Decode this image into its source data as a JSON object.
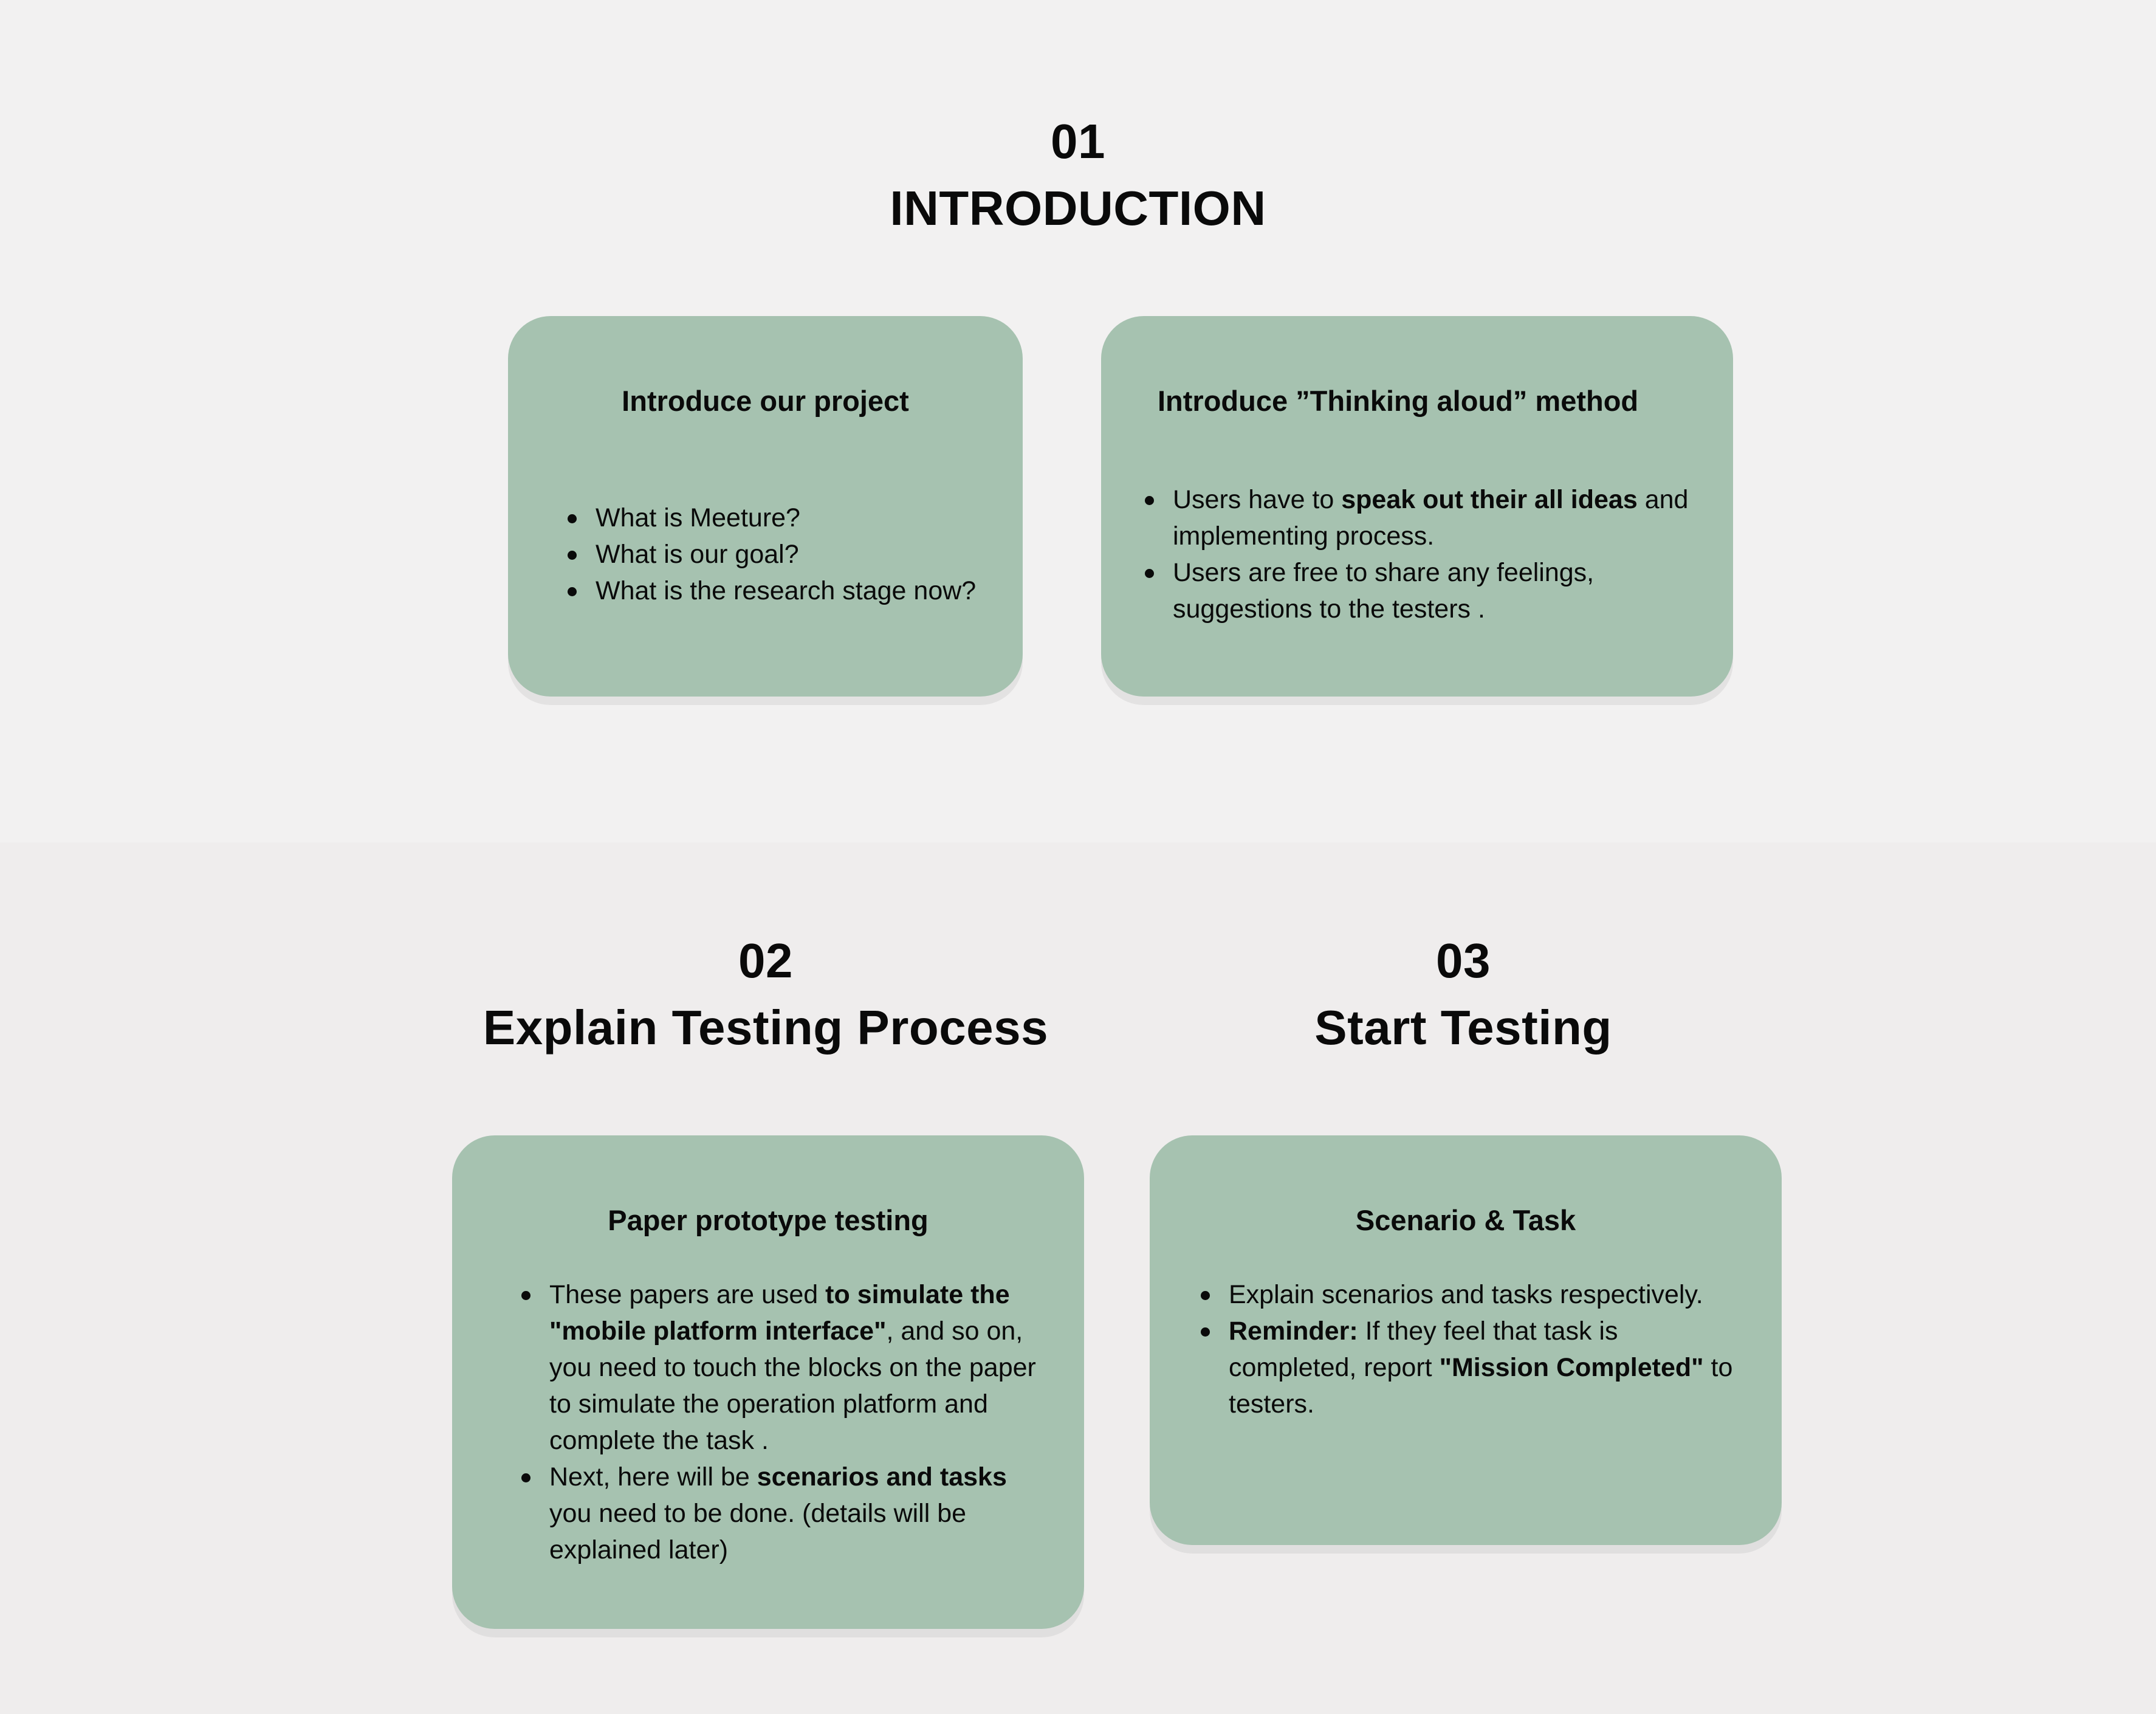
{
  "sections": {
    "intro": {
      "number": "01",
      "title": "INTRODUCTION"
    },
    "explain": {
      "number": "02",
      "title": "Explain Testing Process"
    },
    "start": {
      "number": "03",
      "title": "Start Testing"
    }
  },
  "cards": {
    "project": {
      "title": "Introduce our project",
      "items": [
        "What is Meeture?",
        "What is our goal?",
        "What is the research stage now?"
      ]
    },
    "thinking": {
      "title": "Introduce ”Thinking aloud” method",
      "item1": {
        "a": "Users have to ",
        "b": "speak out their all ideas",
        "c": " and implementing process."
      },
      "item2": "Users are free to share any feelings, suggestions to the testers ."
    },
    "paper": {
      "title": "Paper prototype testing",
      "item1": {
        "a": "These papers are used ",
        "b": "to simulate the \"mobile platform interface\"",
        "c": ", and so on, you need to touch the blocks on the paper to simulate the operation platform and complete the task ."
      },
      "item2": {
        "a": "Next, here will be ",
        "b": "scenarios and tasks",
        "c": " you need to be done. (details will be explained later)"
      }
    },
    "scenario": {
      "title": "Scenario & Task",
      "item1": "Explain scenarios and tasks respectively.",
      "item2": {
        "a": "Reminder:",
        "b": " If they feel that task is completed, report ",
        "c": "\"Mission Completed\"",
        "d": " to testers."
      }
    }
  }
}
